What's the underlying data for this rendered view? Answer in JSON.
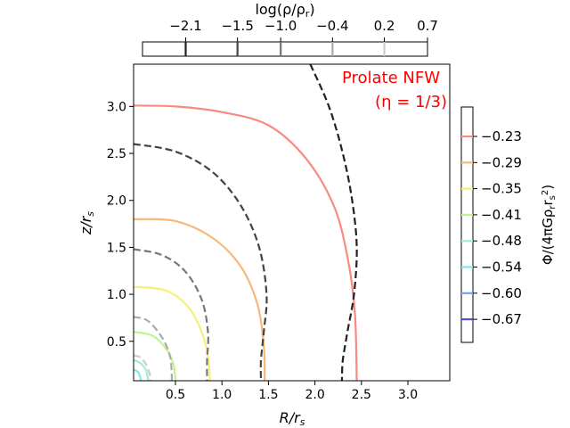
{
  "chart_data": {
    "type": "line",
    "annotation": [
      "Prolate NFW",
      "(η = 1/3)"
    ],
    "annotation_color": "#ff0000",
    "xlabel": "R/r_s",
    "ylabel": "z/r_s",
    "xlim": [
      0.05,
      3.45
    ],
    "ylim": [
      0.08,
      3.45
    ],
    "xticks": [
      0.5,
      1.0,
      1.5,
      2.0,
      2.5,
      3.0
    ],
    "xtick_labels": [
      "0.5",
      "1.0",
      "1.5",
      "2.0",
      "2.5",
      "3.0"
    ],
    "yticks": [
      0.5,
      1.0,
      1.5,
      2.0,
      2.5,
      3.0
    ],
    "ytick_labels": [
      "0.5",
      "1.0",
      "1.5",
      "2.0",
      "2.5",
      "3.0"
    ],
    "grid": false,
    "potential_series": [
      {
        "value": -0.23,
        "color": "#f88a80",
        "points": [
          [
            0.05,
            3.01
          ],
          [
            0.5,
            3.0
          ],
          [
            1.0,
            2.94
          ],
          [
            1.5,
            2.8
          ],
          [
            1.9,
            2.45
          ],
          [
            2.2,
            1.95
          ],
          [
            2.35,
            1.4
          ],
          [
            2.43,
            0.8
          ],
          [
            2.45,
            0.08
          ]
        ]
      },
      {
        "value": -0.29,
        "color": "#f8b87a",
        "points": [
          [
            0.05,
            1.8
          ],
          [
            0.5,
            1.78
          ],
          [
            0.9,
            1.6
          ],
          [
            1.2,
            1.3
          ],
          [
            1.38,
            0.9
          ],
          [
            1.45,
            0.45
          ],
          [
            1.46,
            0.08
          ]
        ]
      },
      {
        "value": -0.35,
        "color": "#f5f07a",
        "points": [
          [
            0.05,
            1.08
          ],
          [
            0.4,
            1.04
          ],
          [
            0.65,
            0.85
          ],
          [
            0.8,
            0.55
          ],
          [
            0.86,
            0.25
          ],
          [
            0.87,
            0.08
          ]
        ]
      },
      {
        "value": -0.41,
        "color": "#bff590",
        "points": [
          [
            0.05,
            0.6
          ],
          [
            0.25,
            0.56
          ],
          [
            0.4,
            0.42
          ],
          [
            0.48,
            0.25
          ],
          [
            0.5,
            0.08
          ]
        ]
      },
      {
        "value": -0.48,
        "color": "#a0f0c8",
        "points": [
          [
            0.05,
            0.3
          ],
          [
            0.12,
            0.27
          ],
          [
            0.18,
            0.2
          ],
          [
            0.2,
            0.12
          ],
          [
            0.21,
            0.08
          ]
        ]
      },
      {
        "value": -0.54,
        "color": "#80e8e8",
        "points": [
          [
            0.05,
            0.2
          ],
          [
            0.1,
            0.17
          ],
          [
            0.12,
            0.12
          ],
          [
            0.13,
            0.08
          ]
        ]
      },
      {
        "value": -0.6,
        "color": "#70a0f0",
        "points": []
      },
      {
        "value": -0.67,
        "color": "#5050e0",
        "points": []
      }
    ],
    "density_series": [
      {
        "value": -2.1,
        "color": "#222222",
        "points": [
          [
            1.95,
            3.45
          ],
          [
            2.15,
            3.0
          ],
          [
            2.3,
            2.5
          ],
          [
            2.4,
            2.0
          ],
          [
            2.45,
            1.5
          ],
          [
            2.42,
            1.0
          ],
          [
            2.35,
            0.6
          ],
          [
            2.3,
            0.3
          ],
          [
            2.29,
            0.08
          ]
        ]
      },
      {
        "value": -1.5,
        "color": "#444444",
        "points": [
          [
            0.05,
            2.6
          ],
          [
            0.5,
            2.52
          ],
          [
            0.9,
            2.3
          ],
          [
            1.2,
            1.95
          ],
          [
            1.4,
            1.5
          ],
          [
            1.48,
            1.0
          ],
          [
            1.45,
            0.6
          ],
          [
            1.42,
            0.3
          ],
          [
            1.42,
            0.08
          ]
        ]
      },
      {
        "value": -1.0,
        "color": "#777777",
        "points": [
          [
            0.05,
            1.48
          ],
          [
            0.35,
            1.42
          ],
          [
            0.6,
            1.25
          ],
          [
            0.78,
            0.95
          ],
          [
            0.85,
            0.6
          ],
          [
            0.84,
            0.3
          ],
          [
            0.84,
            0.08
          ]
        ]
      },
      {
        "value": -0.4,
        "color": "#aaaaaa",
        "points": [
          [
            0.05,
            0.76
          ],
          [
            0.2,
            0.72
          ],
          [
            0.35,
            0.55
          ],
          [
            0.44,
            0.35
          ],
          [
            0.46,
            0.15
          ],
          [
            0.46,
            0.08
          ]
        ]
      },
      {
        "value": 0.2,
        "color": "#cccccc",
        "points": [
          [
            0.05,
            0.35
          ],
          [
            0.12,
            0.33
          ],
          [
            0.18,
            0.26
          ],
          [
            0.22,
            0.16
          ],
          [
            0.23,
            0.08
          ]
        ]
      }
    ],
    "top_colorbar": {
      "label": "log(ρ/ρ_r)",
      "range": [
        -2.6,
        0.7
      ],
      "ticks": [
        -2.1,
        -1.5,
        -1.0,
        -0.4,
        0.2,
        0.7
      ],
      "tick_labels": [
        "−2.1",
        "−1.5",
        "−1.0",
        "−0.4",
        "0.2",
        "0.7"
      ],
      "line_colors": [
        "#222222",
        "#444444",
        "#777777",
        "#aaaaaa",
        "#cccccc"
      ]
    },
    "right_colorbar": {
      "label": "Φ/(4πGρ_r r_s²)",
      "ticks": [
        -0.23,
        -0.29,
        -0.35,
        -0.41,
        -0.48,
        -0.54,
        -0.6,
        -0.67
      ],
      "tick_labels": [
        "−0.23",
        "−0.29",
        "−0.35",
        "−0.41",
        "−0.48",
        "−0.54",
        "−0.60",
        "−0.67"
      ],
      "line_colors": [
        "#f88a80",
        "#f8b87a",
        "#f5f07a",
        "#bff590",
        "#a0f0c8",
        "#80e8e8",
        "#70a0f0",
        "#5050e0"
      ]
    }
  }
}
